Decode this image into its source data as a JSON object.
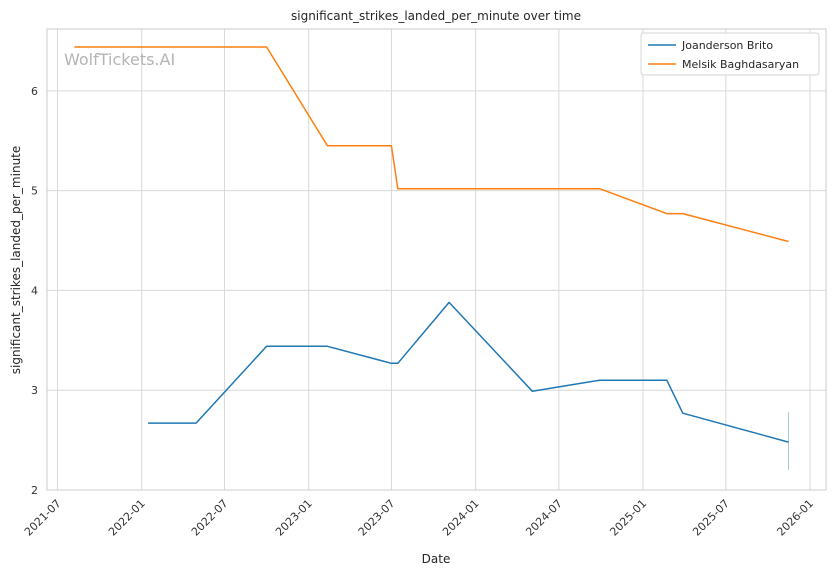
{
  "chart_data": {
    "type": "line",
    "title": "significant_strikes_landed_per_minute over time",
    "xlabel": "Date",
    "ylabel": "significant_strikes_landed_per_minute",
    "watermark": "WolfTickets.AI",
    "x_ticks": [
      "2021-07",
      "2022-01",
      "2022-07",
      "2023-01",
      "2023-07",
      "2024-01",
      "2024-07",
      "2025-01",
      "2025-07",
      "2026-01"
    ],
    "y_ticks": [
      "2",
      "3",
      "4",
      "5",
      "6"
    ],
    "xlim": [
      "2021-06-08",
      "2026-02-05"
    ],
    "ylim": [
      2.0,
      6.62
    ],
    "grid": true,
    "legend_position": "top-right",
    "series": [
      {
        "name": "Joanderson Brito",
        "color": "#1f77b4",
        "points": [
          {
            "x": "2022-01-15",
            "y": 2.67
          },
          {
            "x": "2022-04-30",
            "y": 2.67
          },
          {
            "x": "2022-10-01",
            "y": 3.44
          },
          {
            "x": "2023-02-11",
            "y": 3.44
          },
          {
            "x": "2023-07-01",
            "y": 3.27
          },
          {
            "x": "2023-07-15",
            "y": 3.27
          },
          {
            "x": "2023-11-04",
            "y": 3.88
          },
          {
            "x": "2024-05-04",
            "y": 2.99
          },
          {
            "x": "2024-09-28",
            "y": 3.1
          },
          {
            "x": "2025-02-22",
            "y": 3.1
          },
          {
            "x": "2025-03-29",
            "y": 2.77
          },
          {
            "x": "2025-11-15",
            "y": 2.48
          }
        ]
      },
      {
        "name": "Melsik Baghdasaryan",
        "color": "#ff7f0e",
        "points": [
          {
            "x": "2021-08-07",
            "y": 6.44
          },
          {
            "x": "2022-10-01",
            "y": 6.44
          },
          {
            "x": "2023-02-11",
            "y": 5.45
          },
          {
            "x": "2023-07-01",
            "y": 5.45
          },
          {
            "x": "2023-07-15",
            "y": 5.02
          },
          {
            "x": "2024-09-28",
            "y": 5.02
          },
          {
            "x": "2025-02-22",
            "y": 4.77
          },
          {
            "x": "2025-03-29",
            "y": 4.77
          },
          {
            "x": "2025-11-15",
            "y": 4.49
          }
        ]
      }
    ],
    "annotations": [
      {
        "type": "vline",
        "x": "2025-11-15",
        "y_range": [
          2.2,
          2.78
        ],
        "color": "#a9c9d4"
      }
    ]
  }
}
